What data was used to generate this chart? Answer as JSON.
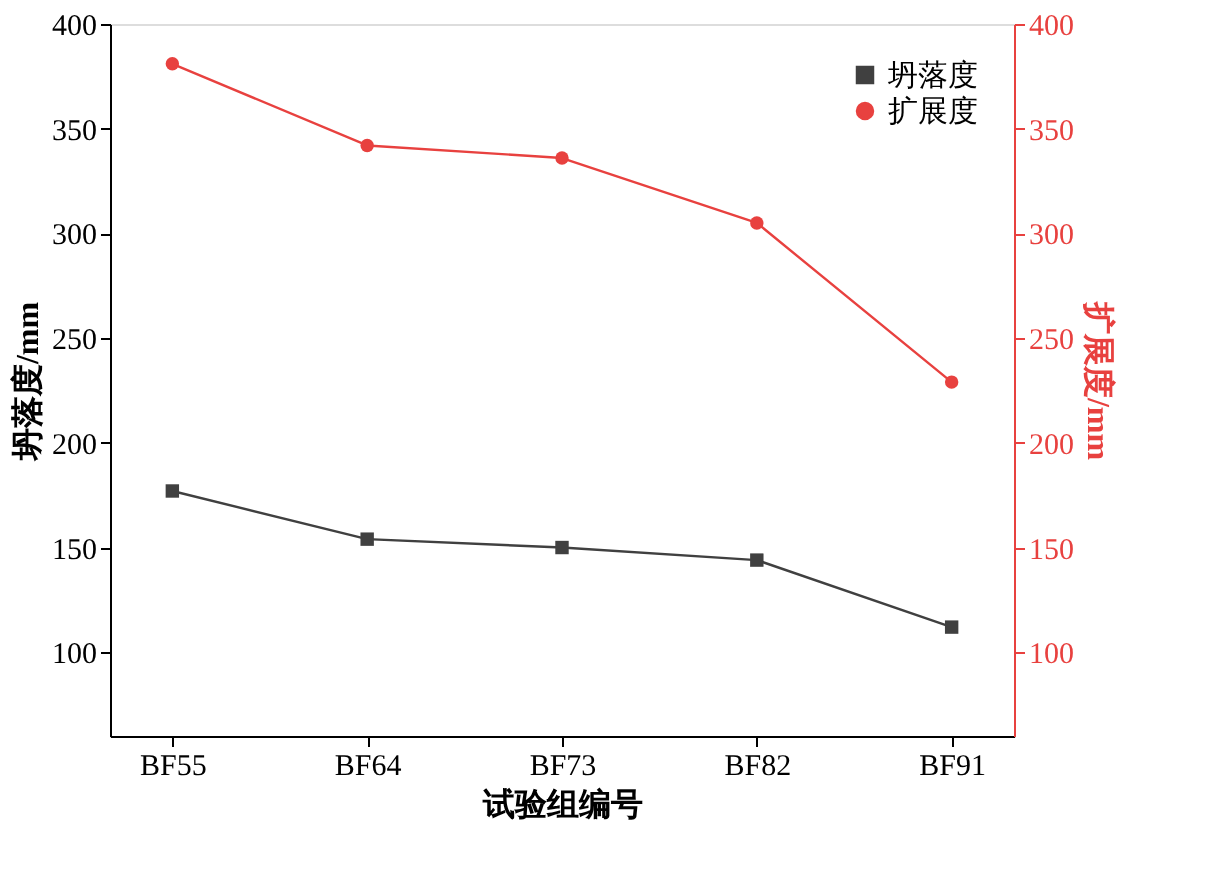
{
  "chart_data": {
    "type": "line",
    "xlabel": "试验组编号",
    "ylabel": "坍落度/mm",
    "y2label": "扩展度/mm",
    "categories": [
      "BF55",
      "BF64",
      "BF73",
      "BF82",
      "BF91"
    ],
    "series": [
      {
        "name": "坍落度",
        "color": "#404040",
        "marker": "square",
        "values": [
          177,
          154,
          150,
          144,
          112
        ]
      },
      {
        "name": "扩展度",
        "color": "#e8413f",
        "marker": "circle",
        "axis": "y2",
        "values": [
          381,
          342,
          336,
          305,
          229
        ]
      }
    ],
    "ylim": [
      60,
      400
    ],
    "yticks": [
      100,
      150,
      200,
      250,
      300,
      350,
      400
    ],
    "y2lim": [
      60,
      400
    ],
    "y2ticks": [
      100,
      150,
      200,
      250,
      300,
      350,
      400
    ],
    "legend": "top right",
    "grid": false,
    "line_style": "solid"
  }
}
